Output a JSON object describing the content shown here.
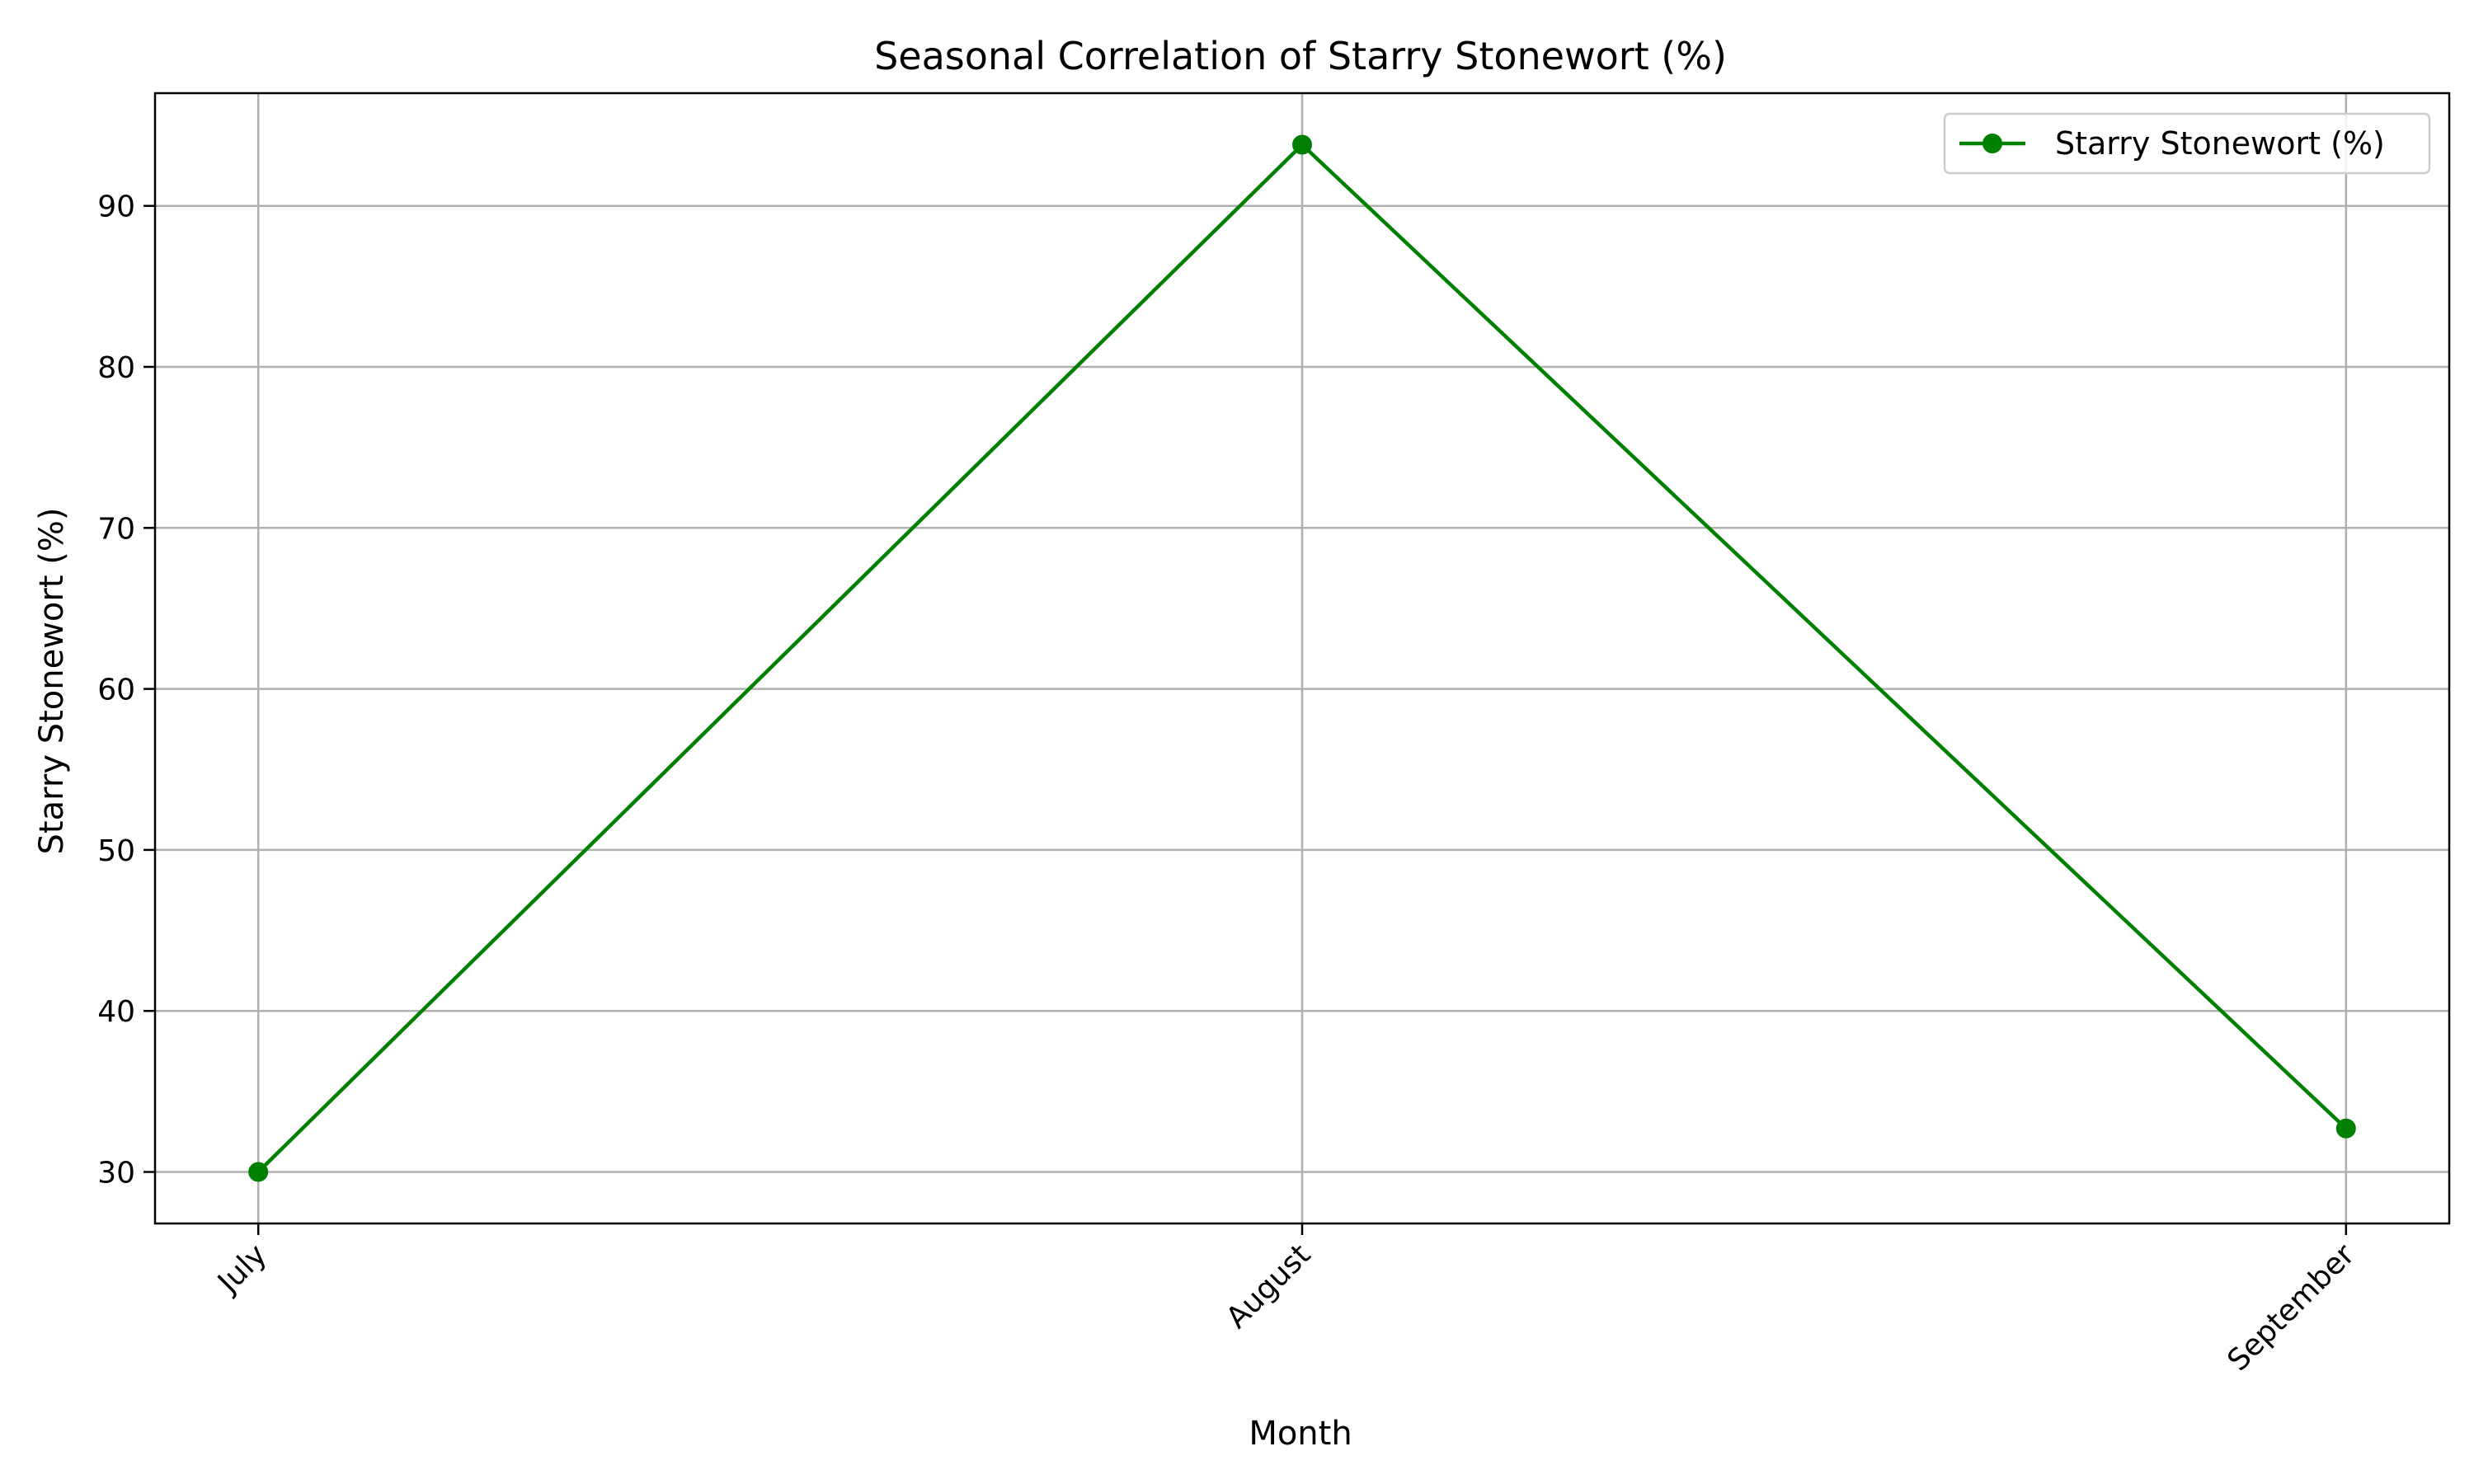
{
  "chart_data": {
    "type": "line",
    "title": "Seasonal Correlation of Starry Stonewort (%)",
    "xlabel": "Month",
    "ylabel": "Starry Stonewort (%)",
    "categories": [
      "July",
      "August",
      "September"
    ],
    "series": [
      {
        "name": "Starry Stonewort (%)",
        "values": [
          30.0,
          93.8,
          32.7
        ],
        "color": "#008000",
        "marker": "circle"
      }
    ],
    "ylim": [
      26.8,
      97.0
    ],
    "yticks": [
      30,
      40,
      50,
      60,
      70,
      80,
      90
    ],
    "grid": true,
    "legend_position": "top-right",
    "xtick_rotation": 45
  }
}
